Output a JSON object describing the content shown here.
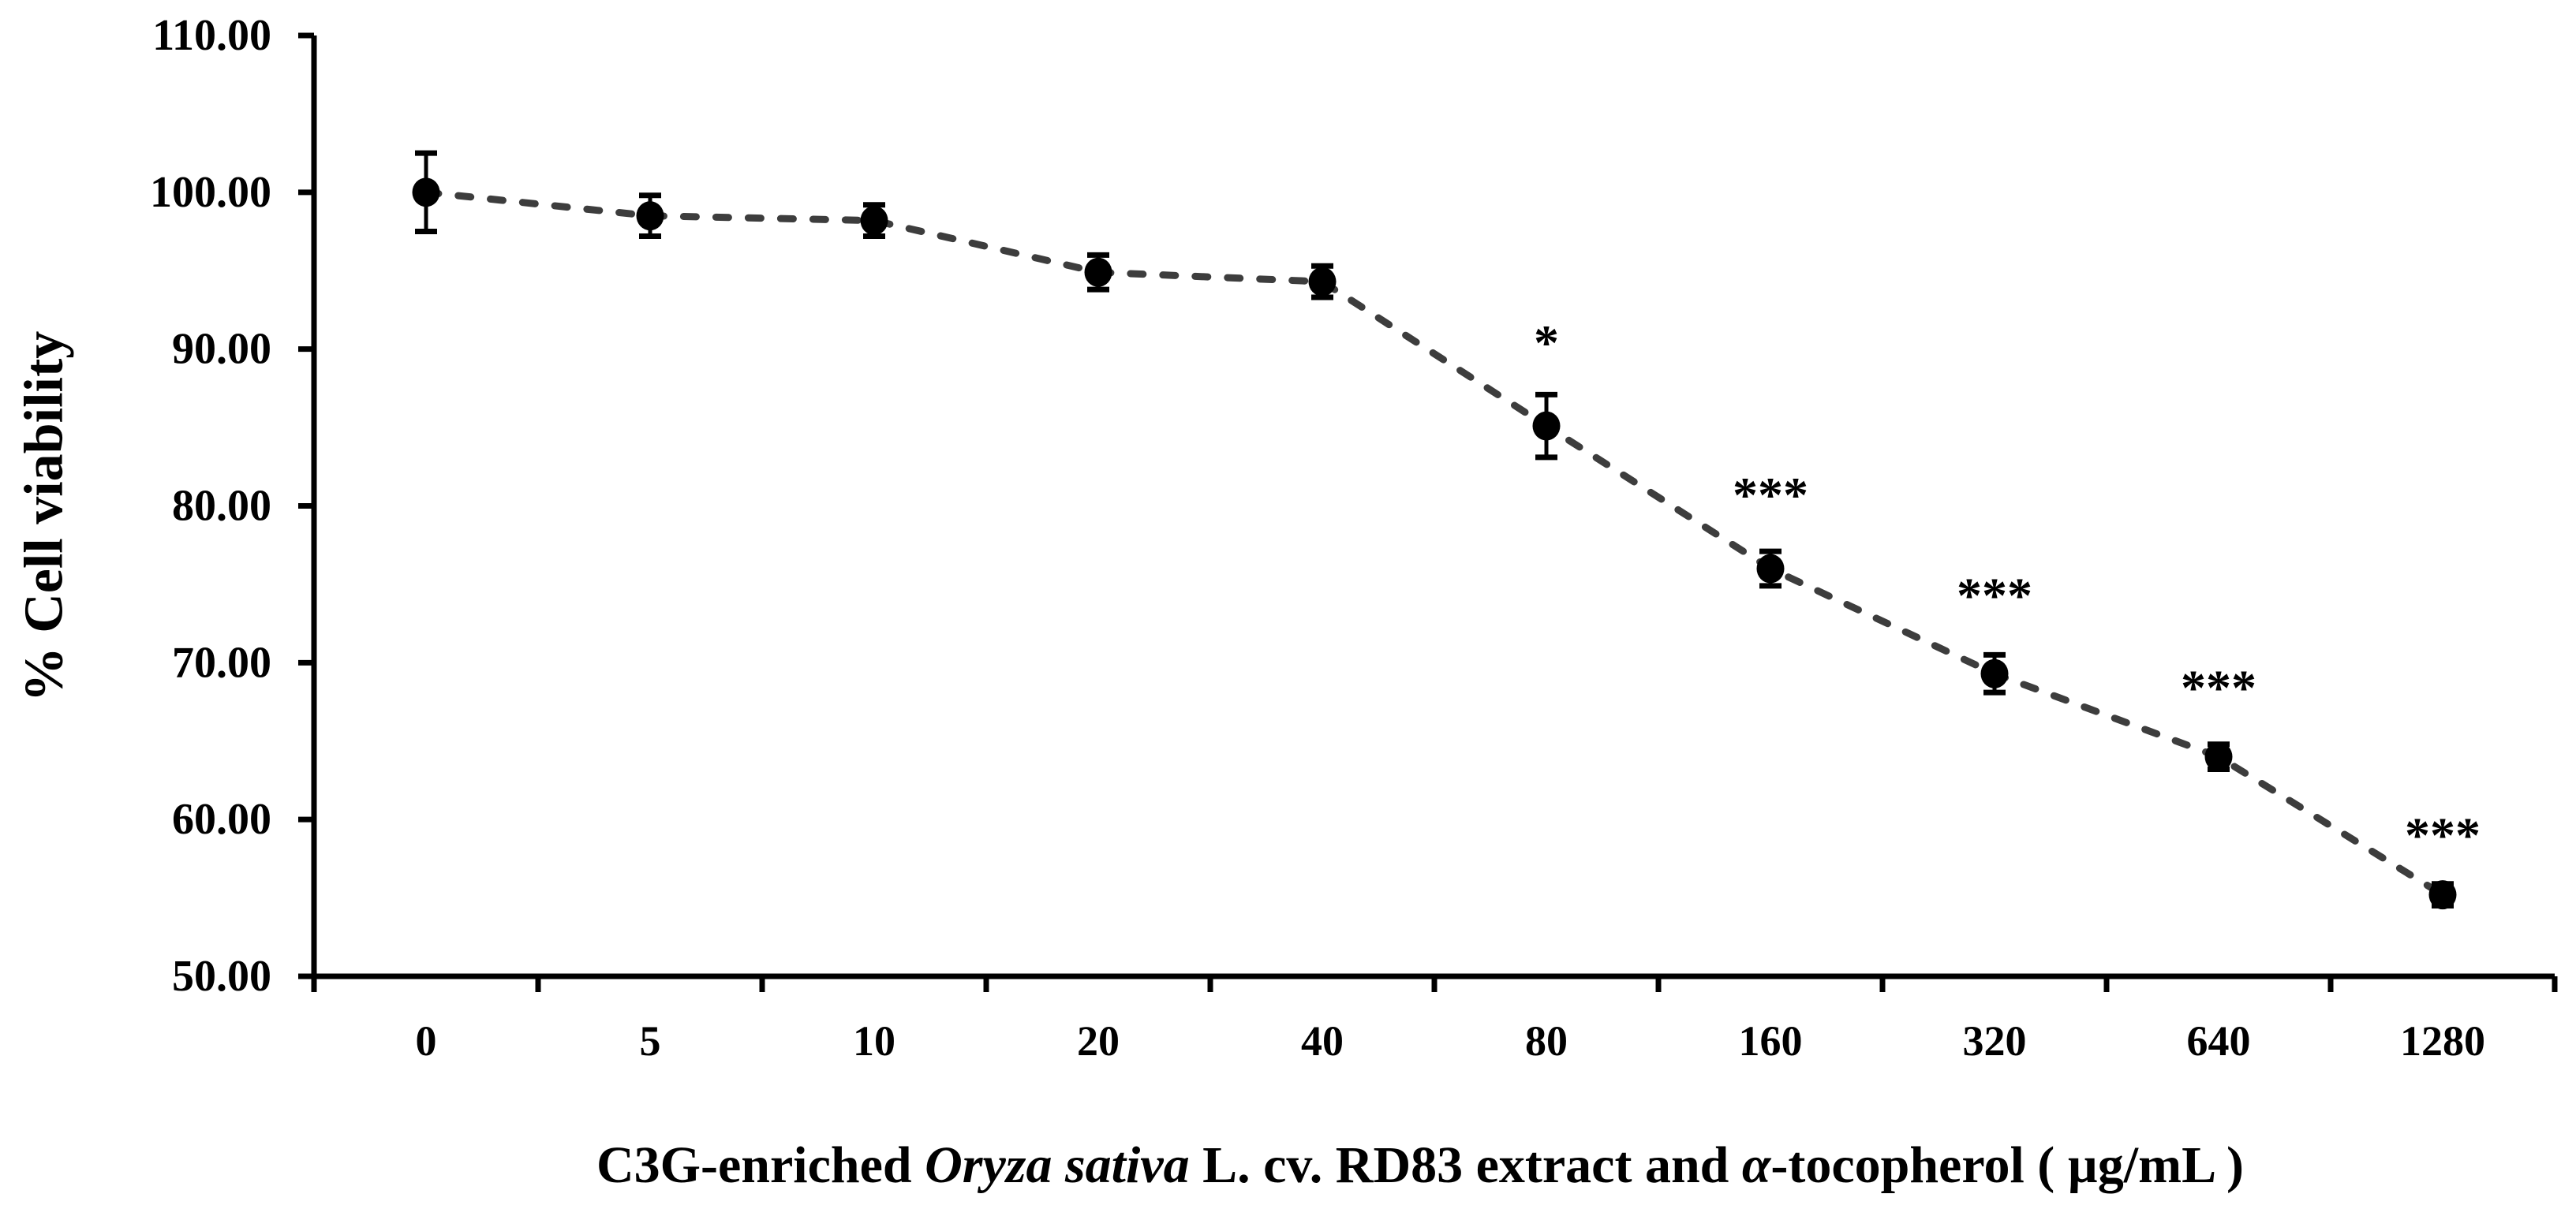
{
  "figure": {
    "background": "#ffffff",
    "axis_color": "#000000",
    "series_line_color": "#3d3d3d",
    "marker_color": "#000000",
    "marker_shape": "filled-circle"
  },
  "y_axis": {
    "title": "% Cell viability",
    "min": 50,
    "max": 110,
    "step": 10,
    "tick_labels": [
      "110.00",
      "100.00",
      "90.00",
      "80.00",
      "70.00",
      "60.00",
      "50.00"
    ],
    "tick_values": [
      110,
      100,
      90,
      80,
      70,
      60,
      50
    ]
  },
  "x_axis": {
    "categories": [
      "0",
      "5",
      "10",
      "20",
      "40",
      "80",
      "160",
      "320",
      "640",
      "1280"
    ],
    "title_segments": [
      {
        "text": "C3G-enriched ",
        "italic": false
      },
      {
        "text": "Oryza sativa",
        "italic": true
      },
      {
        "text": " L. cv. RD83 extract and ",
        "italic": false
      },
      {
        "text": "α",
        "italic": true
      },
      {
        "text": "-tocopherol ( µg/mL )",
        "italic": false
      }
    ]
  },
  "chart_data": {
    "type": "line",
    "title": "",
    "xlabel": "C3G-enriched Oryza sativa L. cv. RD83 extract and α-tocopherol ( µg/mL )",
    "ylabel": "% Cell viability",
    "ylim": [
      50,
      110
    ],
    "grid": false,
    "legend": "none",
    "line_style": "dashed",
    "categories": [
      "0",
      "5",
      "10",
      "20",
      "40",
      "80",
      "160",
      "320",
      "640",
      "1280"
    ],
    "x_concentrations_ug_per_mL": [
      0,
      5,
      10,
      20,
      40,
      80,
      160,
      320,
      640,
      1280
    ],
    "series": [
      {
        "name": "% Cell viability",
        "values": [
          100.0,
          98.5,
          98.2,
          94.9,
          94.3,
          85.1,
          76.0,
          69.3,
          64.0,
          55.2
        ],
        "errors": [
          2.5,
          1.3,
          1.0,
          1.1,
          1.0,
          2.0,
          1.1,
          1.2,
          0.8,
          0.7
        ]
      }
    ],
    "significance_annotations": [
      {
        "category": "80",
        "index": 5,
        "text": "*",
        "at_value": 90.4
      },
      {
        "category": "160",
        "index": 6,
        "text": "***",
        "at_value": 80.7
      },
      {
        "category": "320",
        "index": 7,
        "text": "***",
        "at_value": 74.3
      },
      {
        "category": "640",
        "index": 8,
        "text": "***",
        "at_value": 68.4
      },
      {
        "category": "1280",
        "index": 9,
        "text": "***",
        "at_value": 59.0
      }
    ]
  }
}
